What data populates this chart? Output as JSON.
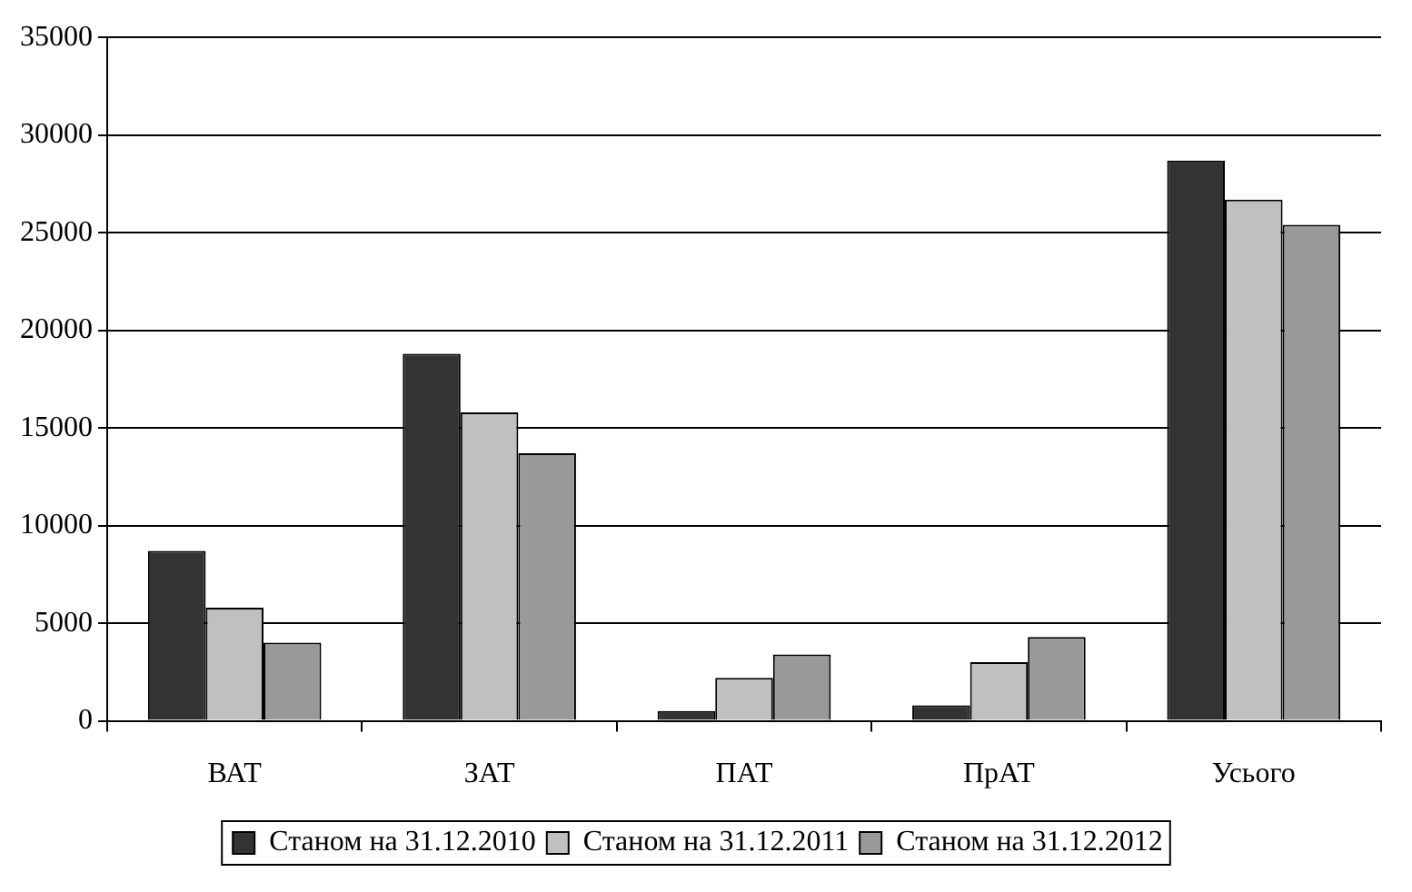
{
  "chart_data": {
    "type": "bar",
    "categories": [
      "ВАТ",
      "ЗАТ",
      "ПАТ",
      "ПрАТ",
      "Усього"
    ],
    "series": [
      {
        "name": "Станом на 31.12.2010",
        "color": "#333333",
        "values": [
          8700,
          18800,
          500,
          800,
          28700
        ]
      },
      {
        "name": "Станом на 31.12.2011",
        "color": "#c0c0c0",
        "values": [
          5800,
          15800,
          2200,
          3000,
          26700
        ]
      },
      {
        "name": "Станом на 31.12.2012",
        "color": "#999999",
        "values": [
          4000,
          13700,
          3400,
          4300,
          25400
        ]
      }
    ],
    "ylim": [
      0,
      35000
    ],
    "yticks": [
      0,
      5000,
      10000,
      15000,
      20000,
      25000,
      30000,
      35000
    ],
    "grid": "y",
    "legend": "bottom"
  }
}
